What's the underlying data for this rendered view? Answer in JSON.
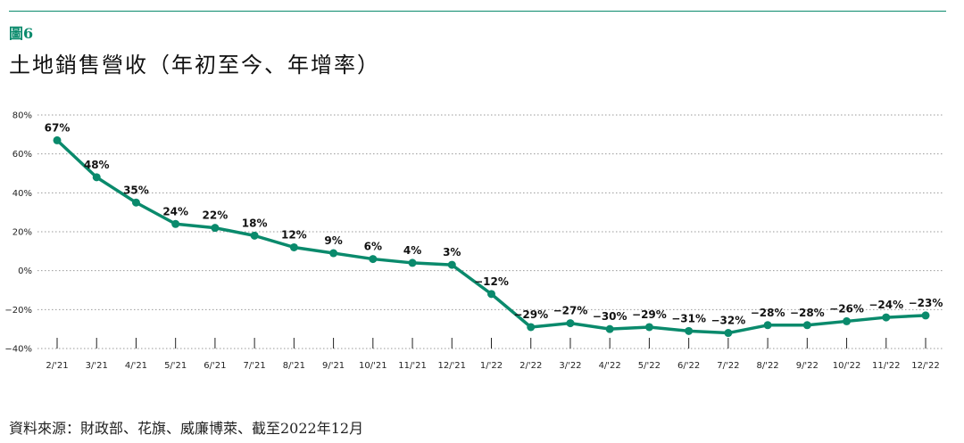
{
  "figure_label": "圖6",
  "title": "土地銷售營收（年初至今、年增率）",
  "source": "資料來源：財政部、花旗、威廉博萊、截至2022年12月",
  "colors": {
    "accent": "#0a8a6c",
    "grid": "#999999"
  },
  "chart_data": {
    "type": "line",
    "title": "土地銷售營收（年初至今、年增率）",
    "xlabel": "",
    "ylabel": "",
    "categories": [
      "2/'21",
      "3/'21",
      "4/'21",
      "5/'21",
      "6/'21",
      "7/'21",
      "8/'21",
      "9/'21",
      "10/'21",
      "11/'21",
      "12/'21",
      "1/'22",
      "2/'22",
      "3/'22",
      "4/'22",
      "5/'22",
      "6/'22",
      "7/'22",
      "8/'22",
      "9/'22",
      "10/'22",
      "11/'22",
      "12/'22"
    ],
    "series": [
      {
        "values": [
          67,
          48,
          35,
          24,
          22,
          18,
          12,
          9,
          6,
          4,
          3,
          -12,
          -29,
          -27,
          -30,
          -29,
          -31,
          -32,
          -28,
          -28,
          -26,
          -24,
          -23
        ]
      }
    ],
    "data_labels": [
      "67%",
      "48%",
      "35%",
      "24%",
      "22%",
      "18%",
      "12%",
      "9%",
      "6%",
      "4%",
      "3%",
      "−12%",
      "−29%",
      "−27%",
      "−30%",
      "−29%",
      "−31%",
      "−32%",
      "−28%",
      "−28%",
      "−26%",
      "−24%",
      "−23%"
    ],
    "ylim": [
      -40,
      80
    ],
    "yticks": [
      80,
      60,
      40,
      20,
      0,
      -20,
      -40
    ],
    "ytick_labels": [
      "80%",
      "60%",
      "40%",
      "20%",
      "0%",
      "−20%",
      "−40%"
    ],
    "grid": true,
    "grid_style": "dotted"
  }
}
